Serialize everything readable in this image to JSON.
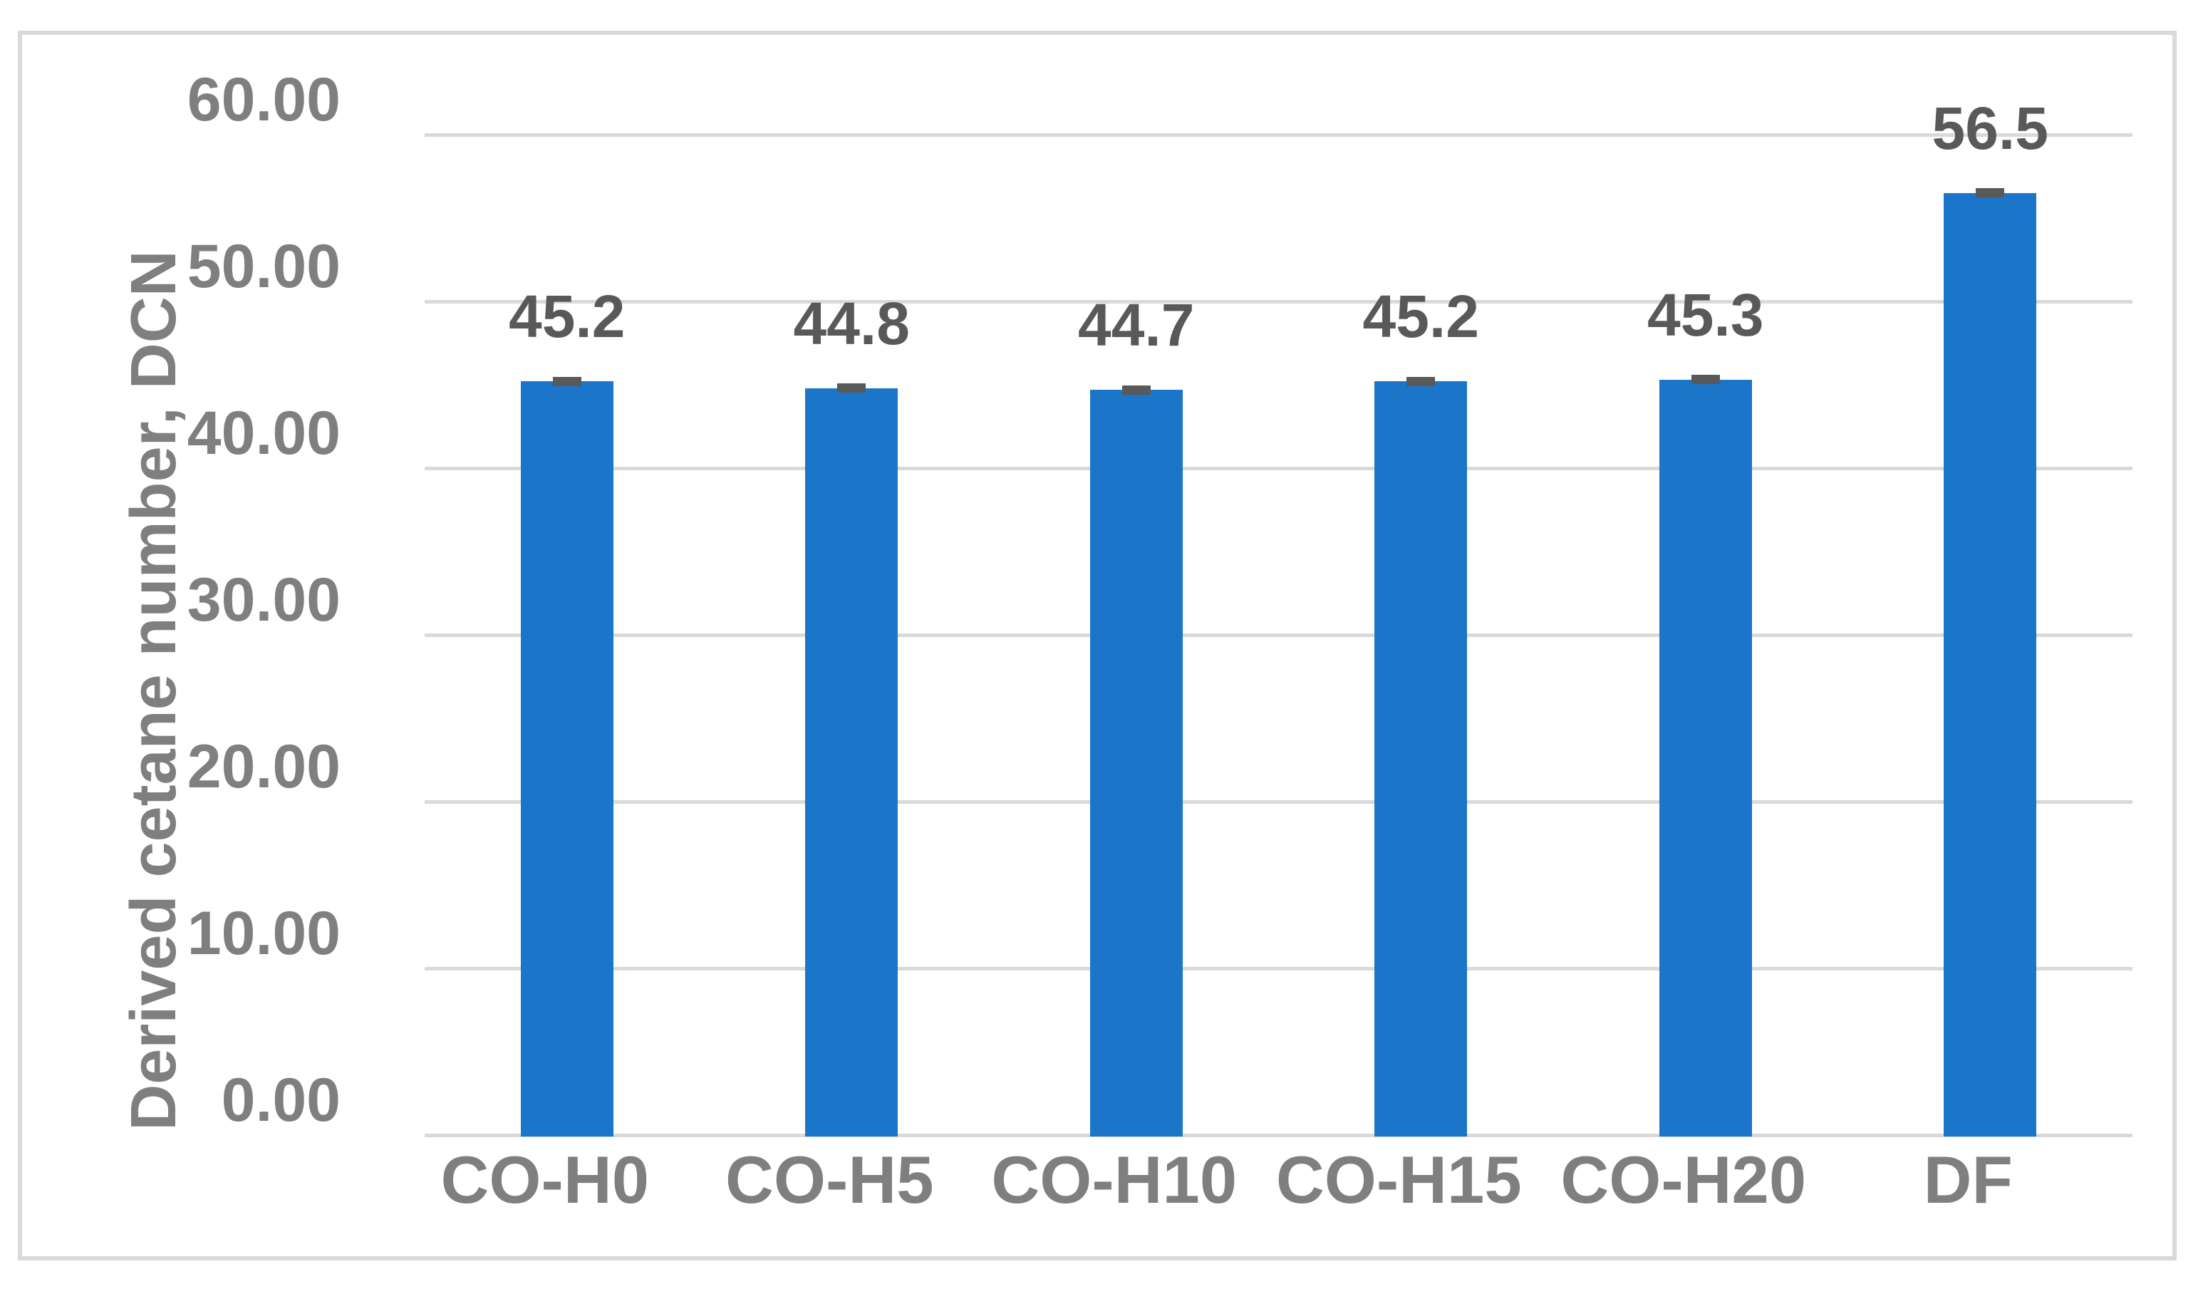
{
  "chart_data": {
    "type": "bar",
    "categories": [
      "CO-H0",
      "CO-H5",
      "CO-H10",
      "CO-H15",
      "CO-H20",
      "DF"
    ],
    "values": [
      45.2,
      44.8,
      44.7,
      45.2,
      45.3,
      56.5
    ],
    "value_labels": [
      "45.2",
      "44.8",
      "44.7",
      "45.2",
      "45.3",
      "56.5"
    ],
    "title": "",
    "xlabel": "",
    "ylabel": "Derived cetane number, DCN",
    "ylim": [
      0,
      60
    ],
    "yticks": [
      {
        "value": 0,
        "label": "0.00"
      },
      {
        "value": 10,
        "label": "10.00"
      },
      {
        "value": 20,
        "label": "20.00"
      },
      {
        "value": 30,
        "label": "30.00"
      },
      {
        "value": 40,
        "label": "40.00"
      },
      {
        "value": 50,
        "label": "50.00"
      },
      {
        "value": 60,
        "label": "60.00"
      }
    ],
    "grid": "horizontal",
    "legend": "none",
    "error_caps": true
  },
  "colors": {
    "bar_fill": "#1B75C8",
    "gridline": "#D9D9D9",
    "frame_border": "#D9D9D9",
    "axis_text": "#7F7F7F",
    "value_label_text": "#595959",
    "error_cap": "#595959",
    "background": "#FFFFFF"
  }
}
